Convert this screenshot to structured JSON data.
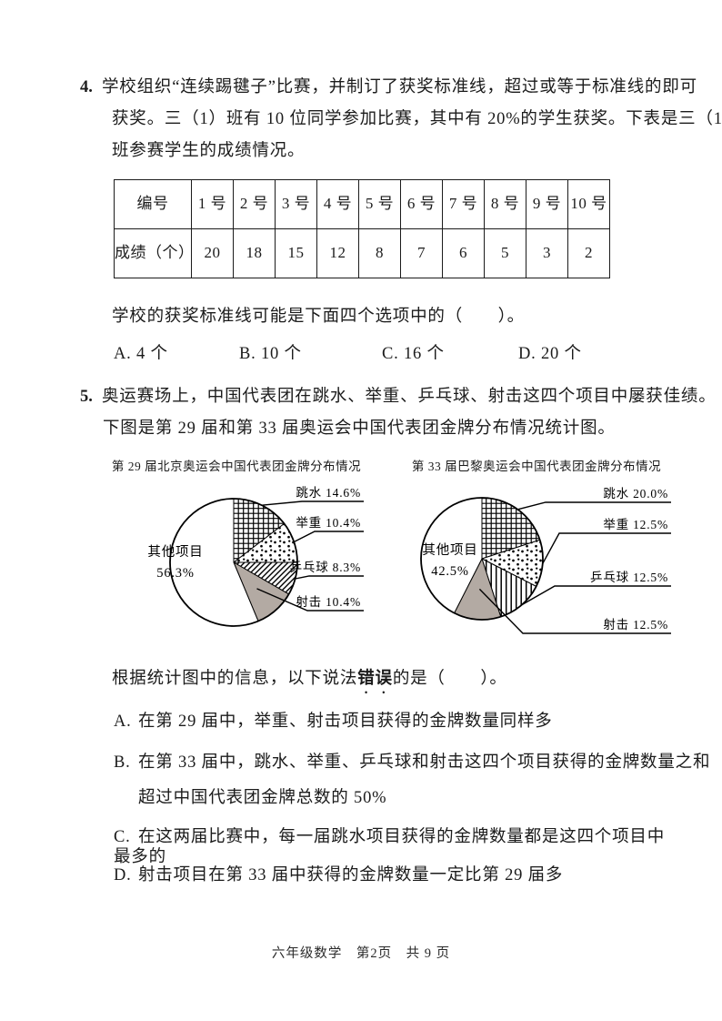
{
  "page": {
    "footer": "六年级数学　第2页　共 9 页"
  },
  "q4": {
    "number": "4.",
    "lines": [
      "学校组织“连续踢毽子”比赛，并制订了获奖标准线，超过或等于标准线的即可",
      "获奖。三（1）班有 10 位同学参加比赛，其中有 20%的学生获奖。下表是三（1）",
      "班参赛学生的成绩情况。"
    ],
    "table": {
      "rows": [
        [
          "编号",
          "1 号",
          "2 号",
          "3 号",
          "4 号",
          "5 号",
          "6 号",
          "7 号",
          "8 号",
          "9 号",
          "10 号"
        ],
        [
          "成绩（个）",
          "20",
          "18",
          "15",
          "12",
          "8",
          "7",
          "6",
          "5",
          "3",
          "2"
        ]
      ]
    },
    "prompt": "学校的获奖标准线可能是下面四个选项中的（　　）。",
    "options": [
      "A. 4 个",
      "B. 10 个",
      "C. 16 个",
      "D. 20 个"
    ]
  },
  "q5": {
    "number": "5.",
    "lines": [
      "奥运赛场上，中国代表团在跳水、举重、乒乓球、射击这四个项目中屡获佳绩。",
      "下图是第 29 届和第 33 届奥运会中国代表团金牌分布情况统计图。"
    ],
    "prompt": {
      "prefix": "根据统计图中的信息，以下说法",
      "emphasis": "错误",
      "suffix": "的是（　　）。"
    },
    "options": [
      {
        "letter": "A.",
        "lines": [
          "在第 29 届中，举重、射击项目获得的金牌数量同样多"
        ]
      },
      {
        "letter": "B.",
        "lines": [
          "在第 33 届中，跳水、举重、乒乓球和射击这四个项目获得的金牌数量之和",
          "超过中国代表团金牌总数的 50%"
        ]
      },
      {
        "letter": "C.",
        "lines": [
          "在这两届比赛中，每一届跳水项目获得的金牌数量都是这四个项目中最多的"
        ]
      },
      {
        "letter": "D.",
        "lines": [
          "射击项目在第 33 届中获得的金牌数量一定比第 29 届多"
        ]
      }
    ]
  },
  "chart_data": [
    {
      "type": "pie",
      "title": "第 29 届北京奥运会中国代表团金牌分布情况",
      "legend_position": "right-callouts",
      "series": [
        {
          "label": "跳水",
          "pct": 14.6,
          "display": "跳水 14.6%",
          "pattern": "grid"
        },
        {
          "label": "举重",
          "pct": 10.4,
          "display": "举重 10.4%",
          "pattern": "dots"
        },
        {
          "label": "乒乓球",
          "pct": 8.3,
          "display": "乒乓球 8.3%",
          "pattern": "diag"
        },
        {
          "label": "射击",
          "pct": 10.4,
          "display": "射击 10.4%",
          "pattern": "gray"
        },
        {
          "label": "其他项目",
          "pct": 56.3,
          "display_line1": "其他项目",
          "display_line2": "56.3%",
          "pattern": "white"
        }
      ]
    },
    {
      "type": "pie",
      "title": "第 33 届巴黎奥运会中国代表团金牌分布情况",
      "legend_position": "right-callouts",
      "series": [
        {
          "label": "跳水",
          "pct": 20.0,
          "display": "跳水 20.0%",
          "pattern": "grid"
        },
        {
          "label": "举重",
          "pct": 12.5,
          "display": "举重 12.5%",
          "pattern": "dots"
        },
        {
          "label": "乒乓球",
          "pct": 12.5,
          "display": "乒乓球 12.5%",
          "pattern": "vlines"
        },
        {
          "label": "射击",
          "pct": 12.5,
          "display": "射击 12.5%",
          "pattern": "gray"
        },
        {
          "label": "其他项目",
          "pct": 42.5,
          "display_line1": "其他项目",
          "display_line2": "42.5%",
          "pattern": "white"
        }
      ]
    }
  ],
  "colors": {
    "ink": "#1b1b1b",
    "slice_gray": "#b3aaa3",
    "paper": "#ffffff"
  }
}
